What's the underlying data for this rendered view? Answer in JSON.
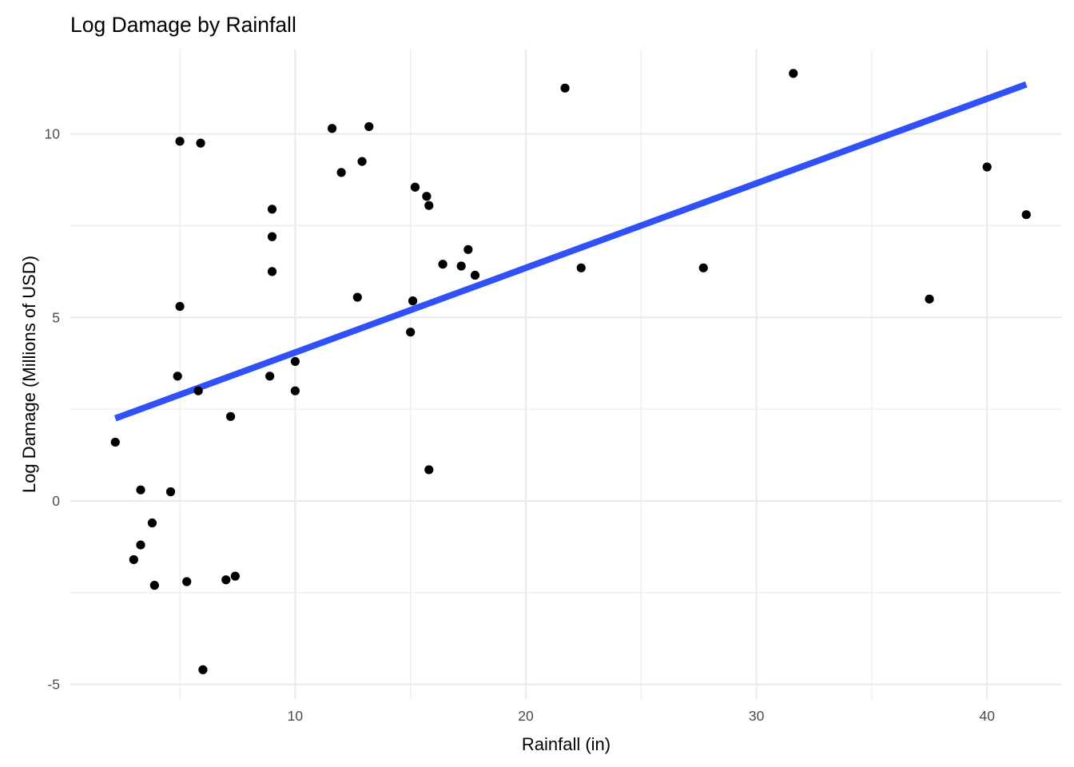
{
  "chart_data": {
    "type": "scatter",
    "title": "Log Damage by Rainfall",
    "xlabel": "Rainfall (in)",
    "ylabel": "Log Damage (Millions of USD)",
    "xlim": [
      0.25,
      43.25
    ],
    "ylim": [
      -5.4,
      12.3
    ],
    "x_major_ticks": [
      10,
      20,
      30,
      40
    ],
    "x_minor_ticks": [
      5,
      15,
      25,
      35
    ],
    "y_major_ticks": [
      -5,
      0,
      5,
      10
    ],
    "y_minor_ticks": [
      -2.5,
      2.5,
      7.5
    ],
    "grid": true,
    "legend": "none",
    "point_color": "#000000",
    "line_color": "#3050f8",
    "series": [
      {
        "type": "scatter",
        "x": [
          2.2,
          3.0,
          3.3,
          3.3,
          3.8,
          3.9,
          4.6,
          4.9,
          5.0,
          5.0,
          5.3,
          5.8,
          5.9,
          6.0,
          7.0,
          7.2,
          7.4,
          8.9,
          9.0,
          9.0,
          9.0,
          10.0,
          10.0,
          11.6,
          12.0,
          12.7,
          12.9,
          13.2,
          15.0,
          15.1,
          15.2,
          15.7,
          15.8,
          15.8,
          16.4,
          17.2,
          17.5,
          17.8,
          21.7,
          22.4,
          27.7,
          31.6,
          37.5,
          40.0,
          41.7
        ],
        "y": [
          1.6,
          -1.6,
          0.3,
          -1.2,
          -0.6,
          -2.3,
          0.25,
          3.4,
          5.3,
          9.8,
          -2.2,
          3.0,
          9.75,
          -4.6,
          -2.15,
          2.3,
          -2.05,
          3.4,
          6.25,
          7.2,
          7.95,
          3.8,
          3.0,
          10.15,
          8.95,
          5.55,
          9.25,
          10.2,
          4.6,
          5.45,
          8.55,
          8.3,
          8.05,
          0.85,
          6.45,
          6.4,
          6.85,
          6.15,
          11.25,
          6.35,
          6.35,
          11.65,
          5.5,
          9.1,
          7.8
        ]
      },
      {
        "type": "line",
        "x": [
          2.2,
          41.7
        ],
        "y": [
          2.25,
          11.35
        ]
      }
    ]
  }
}
